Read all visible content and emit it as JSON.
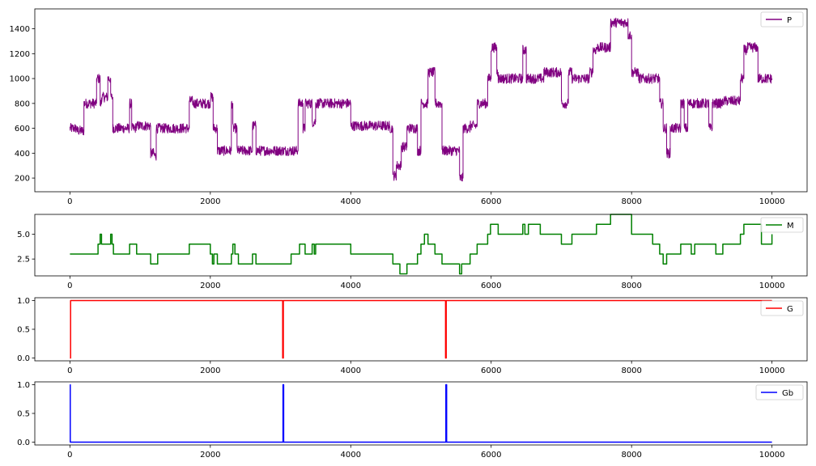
{
  "chart_data": [
    {
      "type": "line",
      "xlim": [
        -500,
        10500
      ],
      "ylim": [
        90,
        1560
      ],
      "x_ticks": [
        0,
        2000,
        4000,
        6000,
        8000,
        10000
      ],
      "y_ticks": [
        200,
        400,
        600,
        800,
        1000,
        1200,
        1400
      ],
      "x_tick_labels": [
        "0",
        "2000",
        "4000",
        "6000",
        "8000",
        "10000"
      ],
      "y_tick_labels": [
        "200",
        "400",
        "600",
        "800",
        "1000",
        "1200",
        "1400"
      ],
      "legend_position": "upper right",
      "grid": false,
      "noise_amplitude": 40,
      "series": [
        {
          "name": "P",
          "color": "#800080",
          "x": [
            0,
            100,
            200,
            380,
            430,
            450,
            540,
            580,
            610,
            850,
            880,
            940,
            1150,
            1200,
            1230,
            1700,
            1750,
            2000,
            2040,
            2100,
            2300,
            2320,
            2380,
            2400,
            2600,
            2650,
            2700,
            3100,
            3250,
            3320,
            3350,
            3450,
            3500,
            3800,
            4000,
            4550,
            4600,
            4650,
            4720,
            4800,
            4950,
            5000,
            5100,
            5200,
            5300,
            5400,
            5550,
            5600,
            5700,
            5800,
            5950,
            6000,
            6080,
            6100,
            6450,
            6500,
            6700,
            6750,
            7000,
            7100,
            7150,
            7400,
            7450,
            7500,
            7700,
            7950,
            8000,
            8100,
            8200,
            8400,
            8450,
            8500,
            8550,
            8600,
            8700,
            8750,
            8800,
            8850,
            9100,
            9150,
            9200,
            9300,
            9550,
            9600,
            9650,
            9800,
            9850,
            10000
          ],
          "y": [
            600,
            580,
            800,
            1000,
            800,
            850,
            1000,
            850,
            600,
            800,
            600,
            620,
            400,
            380,
            600,
            820,
            800,
            850,
            600,
            420,
            800,
            600,
            420,
            420,
            620,
            420,
            420,
            420,
            800,
            600,
            800,
            650,
            800,
            800,
            620,
            600,
            220,
            300,
            450,
            600,
            420,
            800,
            1050,
            800,
            420,
            420,
            200,
            600,
            620,
            800,
            1000,
            1250,
            1050,
            1000,
            1230,
            1000,
            1000,
            1050,
            800,
            1050,
            1000,
            1050,
            1230,
            1250,
            1450,
            1350,
            1050,
            1000,
            1000,
            800,
            600,
            400,
            600,
            600,
            800,
            600,
            800,
            800,
            600,
            800,
            800,
            820,
            1000,
            1230,
            1250,
            1000,
            1000,
            1000
          ]
        }
      ]
    },
    {
      "type": "line",
      "xlim": [
        -500,
        10500
      ],
      "ylim": [
        0.8,
        7.0
      ],
      "x_ticks": [
        0,
        2000,
        4000,
        6000,
        8000,
        10000
      ],
      "y_ticks": [
        2.5,
        5.0
      ],
      "x_tick_labels": [
        "0",
        "2000",
        "4000",
        "6000",
        "8000",
        "10000"
      ],
      "y_tick_labels": [
        "2.5",
        "5.0"
      ],
      "legend_position": "upper right",
      "grid": false,
      "series": [
        {
          "name": "M",
          "color": "#008000",
          "x": [
            0,
            200,
            400,
            430,
            450,
            580,
            600,
            620,
            850,
            950,
            1150,
            1250,
            1700,
            2000,
            2030,
            2050,
            2100,
            2300,
            2320,
            2350,
            2400,
            2600,
            2650,
            2700,
            3150,
            3270,
            3350,
            3380,
            3450,
            3480,
            3500,
            3800,
            4000,
            4550,
            4600,
            4700,
            4800,
            4950,
            5000,
            5050,
            5100,
            5200,
            5300,
            5400,
            5550,
            5580,
            5700,
            5800,
            5950,
            5990,
            6100,
            6450,
            6480,
            6530,
            6650,
            6700,
            7000,
            7100,
            7150,
            7300,
            7400,
            7450,
            7500,
            7700,
            7800,
            7950,
            8000,
            8300,
            8400,
            8450,
            8500,
            8600,
            8700,
            8750,
            8800,
            8850,
            8900,
            9150,
            9200,
            9300,
            9400,
            9500,
            9550,
            9600,
            9700,
            9800,
            9850,
            10000
          ],
          "y": [
            3,
            3,
            4,
            5,
            4,
            5,
            4,
            3,
            4,
            3,
            2,
            3,
            4,
            3,
            2,
            3,
            2,
            3,
            4,
            3,
            2,
            3,
            2,
            2,
            3,
            4,
            3,
            3,
            4,
            3,
            4,
            4,
            3,
            3,
            2,
            1,
            2,
            3,
            4,
            5,
            4,
            3,
            2,
            2,
            1,
            2,
            3,
            4,
            5,
            6,
            5,
            6,
            5,
            6,
            6,
            5,
            4,
            4,
            5,
            5,
            5,
            5,
            6,
            7,
            7,
            7,
            5,
            4,
            3,
            2,
            3,
            3,
            4,
            4,
            4,
            3,
            4,
            4,
            3,
            4,
            4,
            4,
            5,
            6,
            6,
            6,
            4,
            5
          ]
        }
      ]
    },
    {
      "type": "line",
      "xlim": [
        -500,
        10500
      ],
      "ylim": [
        -0.05,
        1.05
      ],
      "x_ticks": [
        0,
        2000,
        4000,
        6000,
        8000,
        10000
      ],
      "y_ticks": [
        0.0,
        0.5,
        1.0
      ],
      "x_tick_labels": [
        "0",
        "2000",
        "4000",
        "6000",
        "8000",
        "10000"
      ],
      "y_tick_labels": [
        "0.0",
        "0.5",
        "1.0"
      ],
      "legend_position": "upper right",
      "grid": false,
      "series": [
        {
          "name": "G",
          "color": "#ff0000",
          "x": [
            0,
            10,
            3030,
            3031,
            3040,
            5350,
            5351,
            5360,
            10000
          ],
          "y": [
            0,
            1,
            1,
            0,
            1,
            1,
            0,
            1,
            1
          ]
        }
      ]
    },
    {
      "type": "line",
      "xlim": [
        -500,
        10500
      ],
      "ylim": [
        -0.05,
        1.05
      ],
      "x_ticks": [
        0,
        2000,
        4000,
        6000,
        8000,
        10000
      ],
      "y_ticks": [
        0.0,
        0.5,
        1.0
      ],
      "x_tick_labels": [
        "0",
        "2000",
        "4000",
        "6000",
        "8000",
        "10000"
      ],
      "y_tick_labels": [
        "0.0",
        "0.5",
        "1.0"
      ],
      "legend_position": "upper right",
      "grid": false,
      "series": [
        {
          "name": "Gb",
          "color": "#0000ff",
          "x": [
            0,
            5,
            15,
            3030,
            3035,
            3045,
            5350,
            5355,
            5365,
            10000
          ],
          "y": [
            1,
            0,
            0,
            0,
            1,
            0,
            0,
            1,
            0,
            0
          ]
        }
      ]
    }
  ]
}
